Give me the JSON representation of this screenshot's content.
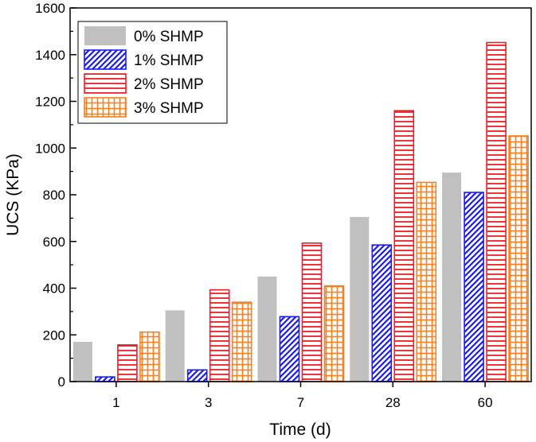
{
  "chart_data": {
    "type": "bar",
    "title": "",
    "xlabel": "Time (d)",
    "ylabel": "UCS (KPa)",
    "categories": [
      "1",
      "3",
      "7",
      "28",
      "60"
    ],
    "ylim": [
      0,
      1600
    ],
    "yticks": [
      "0",
      "200",
      "400",
      "600",
      "800",
      "1000",
      "1200",
      "1400",
      "1600"
    ],
    "legend_position": "top-left",
    "series": [
      {
        "name": "0% SHMP",
        "values": [
          170,
          305,
          450,
          705,
          895
        ],
        "color": "#c0c0c0",
        "pattern": "solid"
      },
      {
        "name": "1% SHMP",
        "values": [
          20,
          50,
          278,
          585,
          810
        ],
        "color": "#1a1aff",
        "pattern": "diagonal"
      },
      {
        "name": "2% SHMP",
        "values": [
          157,
          393,
          593,
          1160,
          1452
        ],
        "color": "#ee1c25",
        "pattern": "horizontal"
      },
      {
        "name": "3% SHMP",
        "values": [
          212,
          340,
          410,
          853,
          1052
        ],
        "color": "#f7811e",
        "pattern": "grid"
      }
    ]
  }
}
